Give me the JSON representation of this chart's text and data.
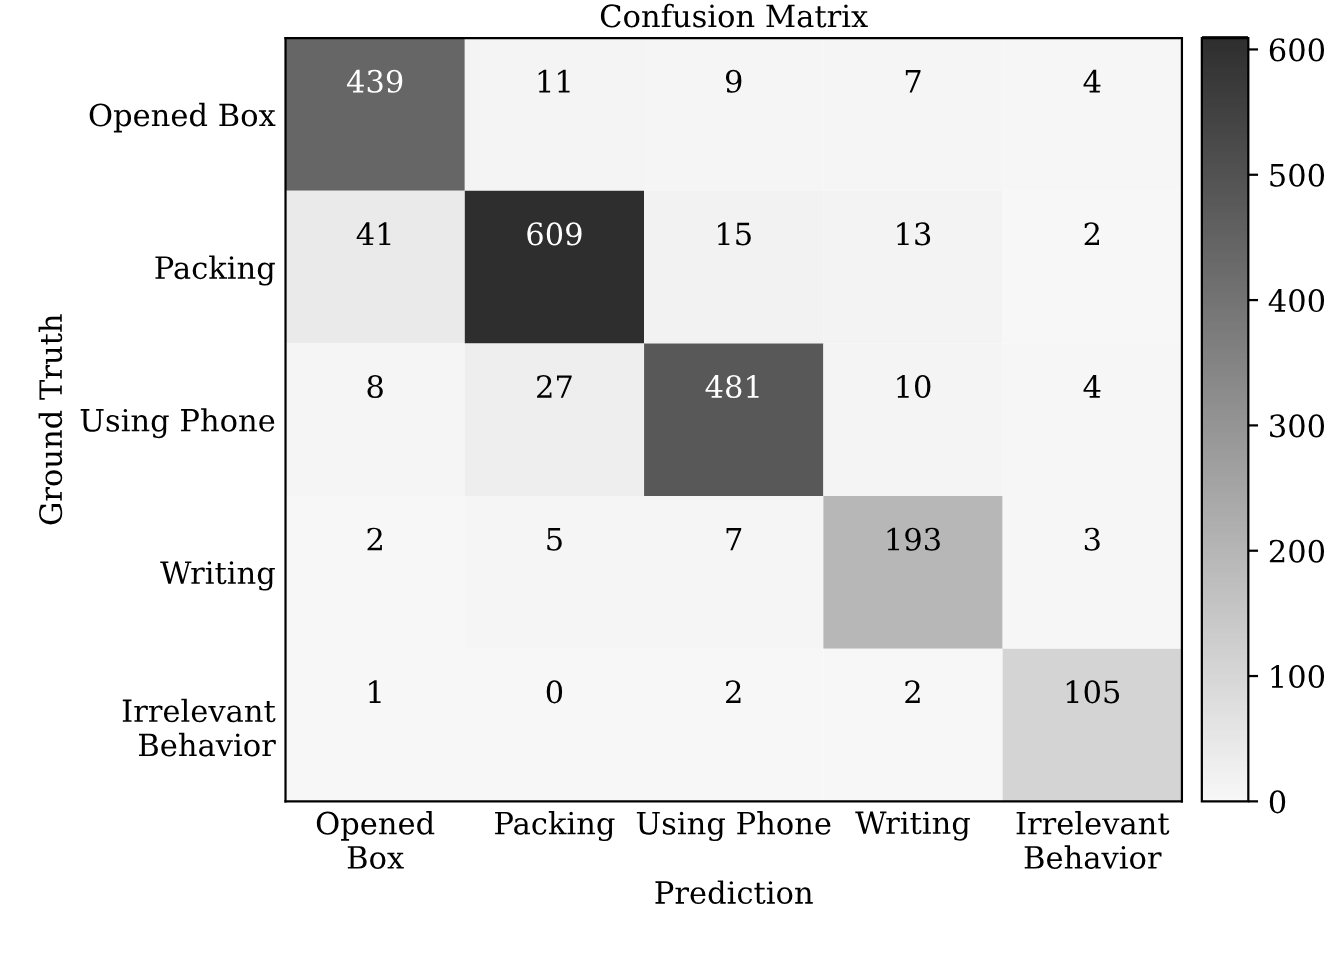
{
  "chart_data": {
    "type": "heatmap",
    "title": "Confusion Matrix",
    "xlabel": "Prediction",
    "ylabel": "Ground Truth",
    "categories": [
      "Opened\nBox",
      "Packing",
      "Using Phone",
      "Writing",
      "Irrelevant\nBehavior"
    ],
    "y_categories": [
      "Opened Box",
      "Packing",
      "Using Phone",
      "Writing",
      "Irrelevant\nBehavior"
    ],
    "cells": [
      [
        439,
        11,
        9,
        7,
        4
      ],
      [
        41,
        609,
        15,
        13,
        2
      ],
      [
        8,
        27,
        481,
        10,
        4
      ],
      [
        2,
        5,
        7,
        193,
        3
      ],
      [
        1,
        0,
        2,
        2,
        105
      ]
    ],
    "clim": [
      0,
      609
    ],
    "cticks": [
      0,
      100,
      200,
      300,
      400,
      500,
      600
    ],
    "data_labels": true,
    "grid": false
  }
}
